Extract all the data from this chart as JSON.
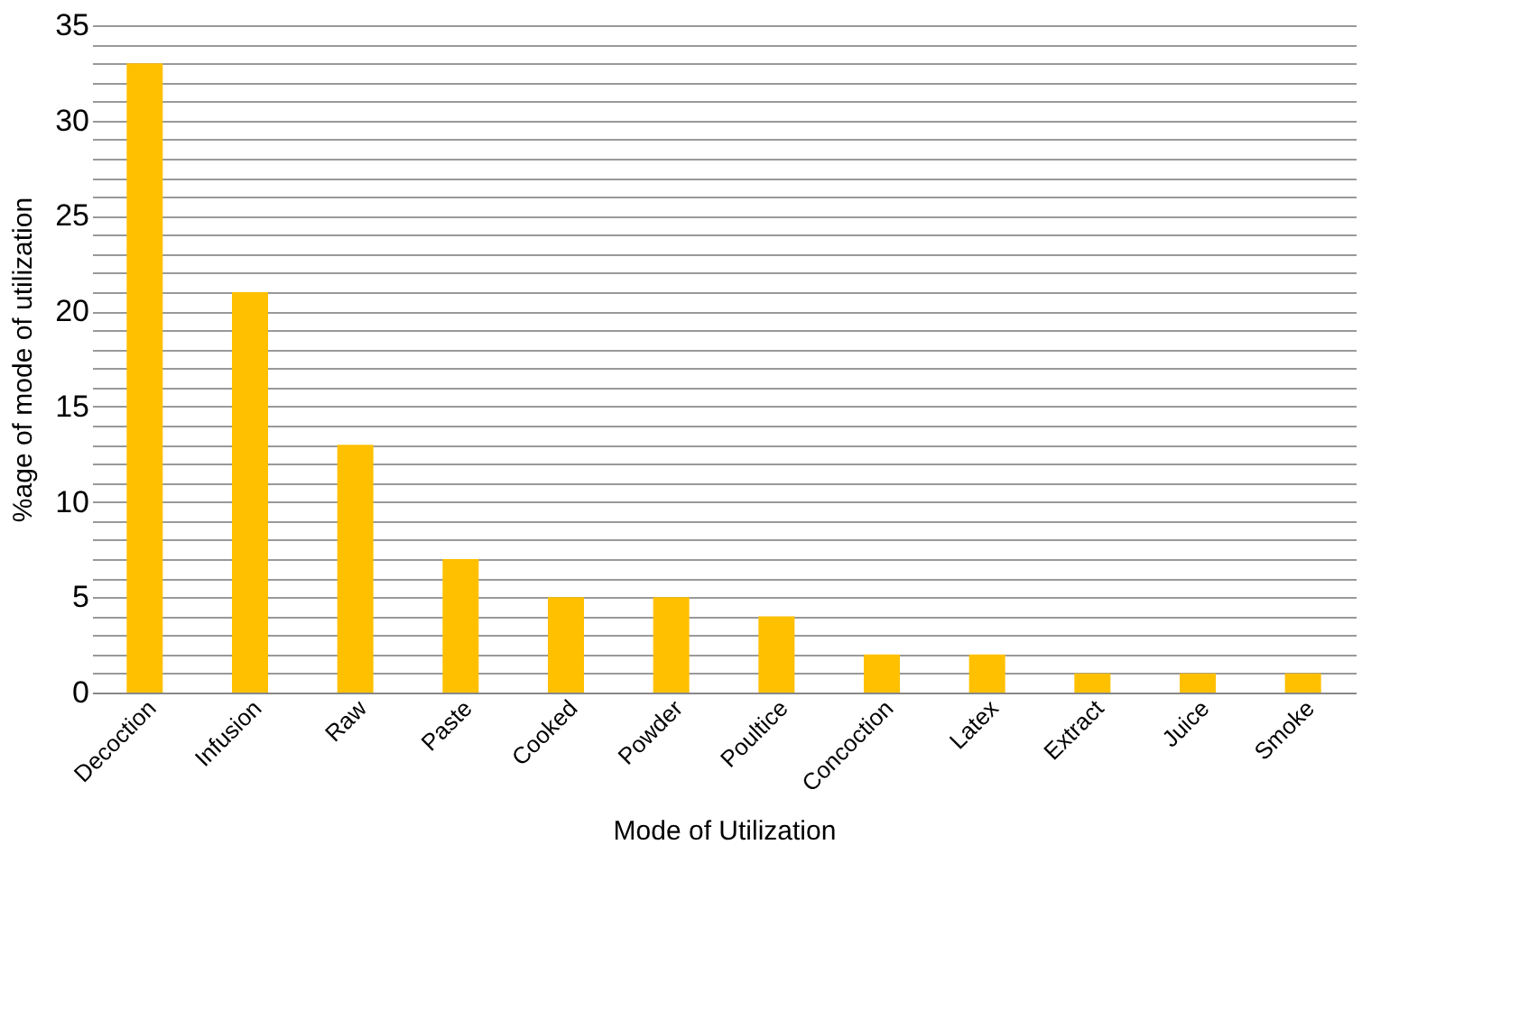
{
  "chart_data": {
    "type": "bar",
    "xlabel": "Mode of Utilization",
    "ylabel": "%age of mode of utilization",
    "categories": [
      "Decoction",
      "Infusion",
      "Raw",
      "Paste",
      "Cooked",
      "Powder",
      "Poultice",
      "Concoction",
      "Latex",
      "Extract",
      "Juice",
      "Smoke"
    ],
    "values": [
      33,
      21,
      13,
      7,
      5,
      5,
      4,
      2,
      2,
      1,
      1,
      1
    ],
    "color": "#ffc000",
    "ylim": [
      0,
      35
    ],
    "yticks": [
      0,
      {
        "value": 1,
        "label": null
      },
      {
        "value": 2,
        "label": null
      },
      {
        "value": 3,
        "label": null
      },
      {
        "value": 4,
        "label": null
      },
      5,
      {
        "value": 6,
        "label": null
      },
      {
        "value": 7,
        "label": null
      },
      {
        "value": 8,
        "label": null
      },
      {
        "value": 9,
        "label": null
      },
      10,
      {
        "value": 11,
        "label": null
      },
      {
        "value": 12,
        "label": null
      },
      {
        "value": 13,
        "label": null
      },
      {
        "value": 14,
        "label": null
      },
      15,
      {
        "value": 16,
        "label": null
      },
      {
        "value": 17,
        "label": null
      },
      {
        "value": 18,
        "label": null
      },
      {
        "value": 19,
        "label": null
      },
      20,
      {
        "value": 21,
        "label": null
      },
      {
        "value": 22,
        "label": null
      },
      {
        "value": 23,
        "label": null
      },
      {
        "value": 24,
        "label": null
      },
      25,
      {
        "value": 26,
        "label": null
      },
      {
        "value": 27,
        "label": null
      },
      {
        "value": 28,
        "label": null
      },
      {
        "value": 29,
        "label": null
      },
      30,
      {
        "value": 31,
        "label": null
      },
      {
        "value": 32,
        "label": null
      },
      {
        "value": 33,
        "label": null
      },
      {
        "value": 34,
        "label": null
      },
      35
    ],
    "grid": "y"
  }
}
